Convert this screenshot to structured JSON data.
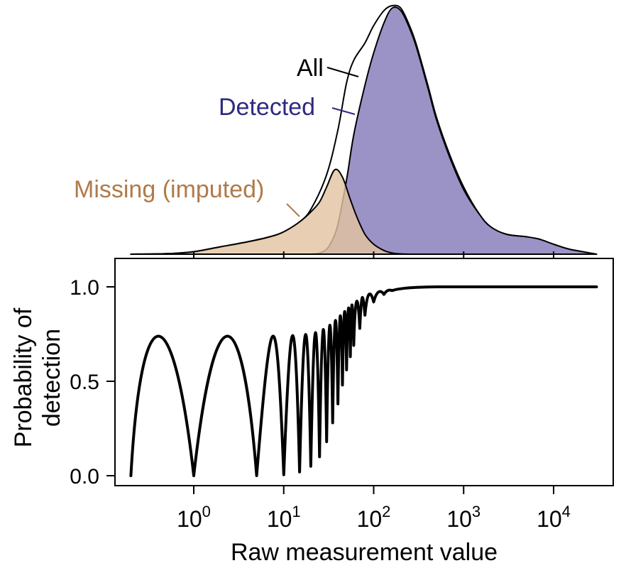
{
  "chart_data": [
    {
      "type": "area",
      "panel": "density",
      "x_scale": "log10",
      "xlim": [
        0.2,
        30000
      ],
      "series": [
        {
          "name": "All",
          "fill": "#ffffff",
          "stroke": "#000000",
          "x": [
            0.2,
            0.5,
            1,
            2,
            4,
            7,
            10,
            15,
            20,
            30,
            40,
            50,
            60,
            80,
            100,
            130,
            160,
            200,
            250,
            300,
            400,
            500,
            700,
            1000,
            1500,
            2000,
            3000,
            5000,
            7000,
            10000,
            15000,
            30000
          ],
          "y": [
            0,
            0.002,
            0.01,
            0.03,
            0.05,
            0.07,
            0.09,
            0.13,
            0.18,
            0.32,
            0.5,
            0.69,
            0.78,
            0.85,
            0.92,
            0.98,
            1.0,
            0.99,
            0.92,
            0.84,
            0.68,
            0.55,
            0.4,
            0.27,
            0.16,
            0.11,
            0.08,
            0.07,
            0.06,
            0.04,
            0.02,
            0
          ]
        },
        {
          "name": "Detected",
          "fill": "#9b93c6",
          "stroke": "#000000",
          "x": [
            0.2,
            1,
            10,
            20,
            25,
            30,
            35,
            40,
            50,
            60,
            80,
            100,
            130,
            160,
            200,
            250,
            300,
            400,
            500,
            700,
            1000,
            1500,
            2000,
            3000,
            5000,
            7000,
            10000,
            15000,
            30000
          ],
          "y": [
            0,
            0,
            0,
            0,
            0.005,
            0.02,
            0.06,
            0.12,
            0.3,
            0.48,
            0.68,
            0.81,
            0.93,
            0.99,
            0.98,
            0.91,
            0.83,
            0.67,
            0.54,
            0.39,
            0.26,
            0.16,
            0.11,
            0.08,
            0.07,
            0.06,
            0.04,
            0.02,
            0
          ]
        },
        {
          "name": "Missing (imputed)",
          "fill": "#e3c3a1",
          "stroke": "#000000",
          "x": [
            0.2,
            0.5,
            1,
            2,
            4,
            7,
            10,
            15,
            20,
            25,
            30,
            37,
            45,
            55,
            65,
            80,
            100,
            130,
            160,
            200,
            250
          ],
          "y": [
            0,
            0.002,
            0.01,
            0.03,
            0.05,
            0.07,
            0.09,
            0.13,
            0.17,
            0.21,
            0.27,
            0.34,
            0.31,
            0.22,
            0.15,
            0.08,
            0.04,
            0.015,
            0.005,
            0.001,
            0
          ]
        }
      ],
      "annotations": [
        {
          "text": "All",
          "color": "#000000"
        },
        {
          "text": "Detected",
          "color": "#2e2a80"
        },
        {
          "text": "Missing (imputed)",
          "color": "#b07a4a"
        }
      ]
    },
    {
      "type": "line",
      "panel": "probability",
      "x_scale": "log10",
      "xlim": [
        0.2,
        30000
      ],
      "ylim": [
        0,
        1
      ],
      "ylabel": "Probability of detection",
      "xlabel": "Raw measurement value",
      "y_ticks": [
        "0.0",
        "0.5",
        "1.0"
      ],
      "x_ticks": [
        {
          "base": "10",
          "exp": "0",
          "value": 1
        },
        {
          "base": "10",
          "exp": "1",
          "value": 10
        },
        {
          "base": "10",
          "exp": "2",
          "value": 100
        },
        {
          "base": "10",
          "exp": "3",
          "value": 1000
        },
        {
          "base": "10",
          "exp": "4",
          "value": 10000
        }
      ],
      "series": [
        {
          "x": [
            0.2,
            1,
            5,
            10,
            15,
            20,
            25,
            30,
            35,
            40,
            45,
            50,
            55,
            60,
            70,
            80,
            100,
            130,
            160,
            200,
            300,
            500,
            1000,
            10000,
            30000
          ],
          "y": [
            0,
            0,
            0,
            0.005,
            0.02,
            0.05,
            0.1,
            0.18,
            0.28,
            0.38,
            0.48,
            0.56,
            0.63,
            0.69,
            0.78,
            0.85,
            0.92,
            0.96,
            0.98,
            0.99,
            0.997,
            1,
            1,
            1,
            1
          ]
        }
      ]
    }
  ]
}
